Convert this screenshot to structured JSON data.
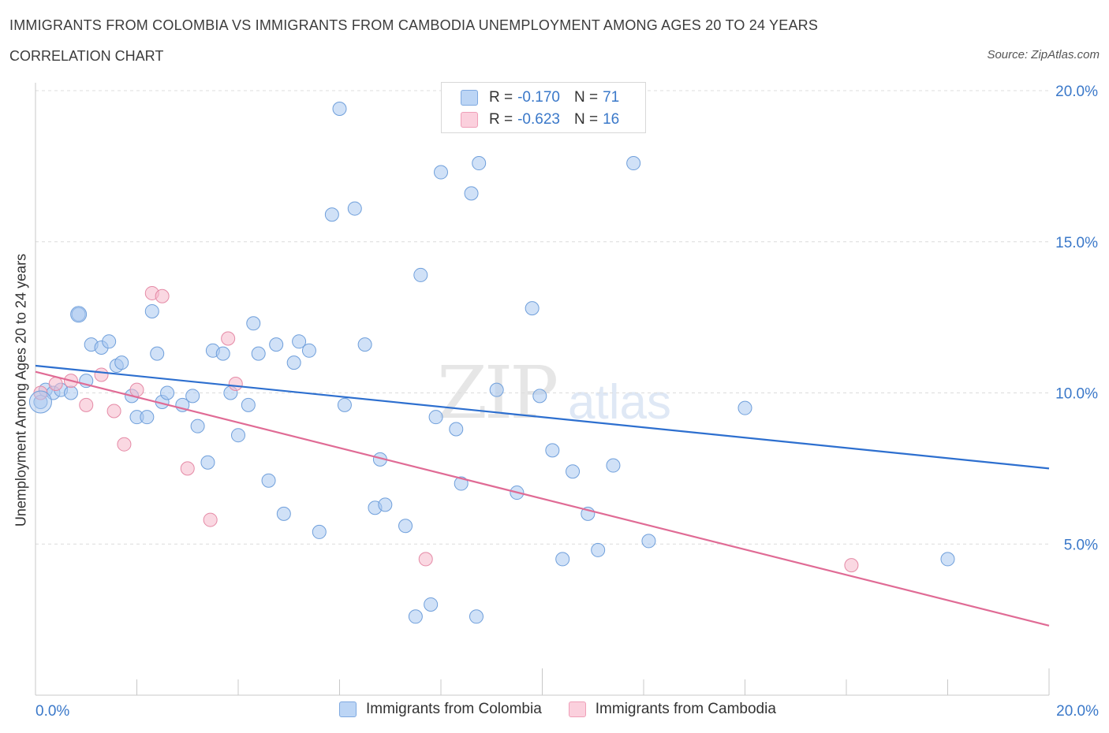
{
  "header": {
    "title": "IMMIGRANTS FROM COLOMBIA VS IMMIGRANTS FROM CAMBODIA UNEMPLOYMENT AMONG AGES 20 TO 24 YEARS",
    "subtitle": "CORRELATION CHART",
    "source": "Source: ZipAtlas.com"
  },
  "watermark": {
    "zip": "ZIP",
    "atlas": "atlas"
  },
  "legend_top": [
    {
      "r_label": "R =",
      "r_value": "-0.170",
      "n_label": "N =",
      "n_value": "71",
      "color": "#a9c8f0"
    },
    {
      "r_label": "R =",
      "r_value": "-0.623",
      "n_label": "N =",
      "n_value": "16",
      "color": "#f6b8cb"
    }
  ],
  "legend_bottom": [
    {
      "label": "Immigrants from Colombia",
      "color": "#a9c8f0"
    },
    {
      "label": "Immigrants from Cambodia",
      "color": "#f6b8cb"
    }
  ],
  "chart_data": {
    "type": "scatter",
    "xlabel": "",
    "ylabel": "Unemployment Among Ages 20 to 24 years",
    "xlim": [
      0,
      20
    ],
    "ylim": [
      0,
      20
    ],
    "x_tick_labels": [
      "0.0%",
      "20.0%"
    ],
    "y_ticks": [
      5,
      10,
      15,
      20
    ],
    "y_tick_labels": [
      "5.0%",
      "10.0%",
      "15.0%",
      "20.0%"
    ],
    "grid": true,
    "series": [
      {
        "name": "Immigrants from Colombia",
        "color": "#a9c8f0",
        "stroke": "#6f9fdb",
        "trend": {
          "x": [
            0,
            20
          ],
          "y": [
            10.9,
            7.5
          ],
          "color": "#2d6fcf"
        },
        "points": [
          [
            0.1,
            9.7
          ],
          [
            0.2,
            10.1
          ],
          [
            0.35,
            10.0
          ],
          [
            0.5,
            10.1
          ],
          [
            0.7,
            10.0
          ],
          [
            0.85,
            12.6
          ],
          [
            1.0,
            10.4
          ],
          [
            1.1,
            11.6
          ],
          [
            1.3,
            11.5
          ],
          [
            1.45,
            11.7
          ],
          [
            1.6,
            10.9
          ],
          [
            1.7,
            11.0
          ],
          [
            1.9,
            9.9
          ],
          [
            2.0,
            9.2
          ],
          [
            2.2,
            9.2
          ],
          [
            2.3,
            12.7
          ],
          [
            2.4,
            11.3
          ],
          [
            2.5,
            9.7
          ],
          [
            2.6,
            10.0
          ],
          [
            2.9,
            9.6
          ],
          [
            3.1,
            9.9
          ],
          [
            3.2,
            8.9
          ],
          [
            3.4,
            7.7
          ],
          [
            3.5,
            11.4
          ],
          [
            3.7,
            11.3
          ],
          [
            3.85,
            10.0
          ],
          [
            4.0,
            8.6
          ],
          [
            4.2,
            9.6
          ],
          [
            4.3,
            12.3
          ],
          [
            4.4,
            11.3
          ],
          [
            4.6,
            7.1
          ],
          [
            4.75,
            11.6
          ],
          [
            4.9,
            6.0
          ],
          [
            5.1,
            11.0
          ],
          [
            5.2,
            11.7
          ],
          [
            5.4,
            11.4
          ],
          [
            5.6,
            5.4
          ],
          [
            5.85,
            15.9
          ],
          [
            6.0,
            19.4
          ],
          [
            6.1,
            9.6
          ],
          [
            6.3,
            16.1
          ],
          [
            6.5,
            11.6
          ],
          [
            6.7,
            6.2
          ],
          [
            6.8,
            7.8
          ],
          [
            6.9,
            6.3
          ],
          [
            7.3,
            5.6
          ],
          [
            7.5,
            2.6
          ],
          [
            7.6,
            13.9
          ],
          [
            7.8,
            3.0
          ],
          [
            7.9,
            9.2
          ],
          [
            8.0,
            17.3
          ],
          [
            8.3,
            8.8
          ],
          [
            8.4,
            7.0
          ],
          [
            8.6,
            16.6
          ],
          [
            8.7,
            2.6
          ],
          [
            8.75,
            17.6
          ],
          [
            9.1,
            10.1
          ],
          [
            9.5,
            6.7
          ],
          [
            9.8,
            12.8
          ],
          [
            9.95,
            9.9
          ],
          [
            10.2,
            8.1
          ],
          [
            10.4,
            4.5
          ],
          [
            10.6,
            7.4
          ],
          [
            10.9,
            6.0
          ],
          [
            11.1,
            4.8
          ],
          [
            11.4,
            7.6
          ],
          [
            11.6,
            19.4
          ],
          [
            11.8,
            17.6
          ],
          [
            12.1,
            5.1
          ],
          [
            14.0,
            9.5
          ],
          [
            18.0,
            4.5
          ]
        ]
      },
      {
        "name": "Immigrants from Cambodia",
        "color": "#f6b8cb",
        "stroke": "#e58aa6",
        "trend": {
          "x": [
            0,
            20
          ],
          "y": [
            10.7,
            2.3
          ],
          "color": "#e06b95"
        },
        "points": [
          [
            0.1,
            10.0
          ],
          [
            0.4,
            10.3
          ],
          [
            0.7,
            10.4
          ],
          [
            1.0,
            9.6
          ],
          [
            1.3,
            10.6
          ],
          [
            1.55,
            9.4
          ],
          [
            1.75,
            8.3
          ],
          [
            2.0,
            10.1
          ],
          [
            2.3,
            13.3
          ],
          [
            2.5,
            13.2
          ],
          [
            3.0,
            7.5
          ],
          [
            3.45,
            5.8
          ],
          [
            3.8,
            11.8
          ],
          [
            3.95,
            10.3
          ],
          [
            7.7,
            4.5
          ],
          [
            16.1,
            4.3
          ]
        ]
      }
    ]
  }
}
